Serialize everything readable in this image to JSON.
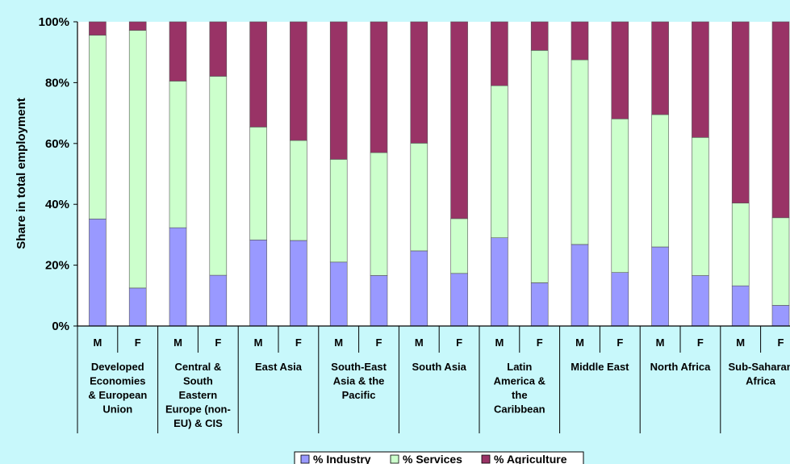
{
  "chart_data": {
    "type": "bar",
    "stacked": true,
    "percent": true,
    "ylabel": "Share in total employment",
    "ylim": [
      0,
      100
    ],
    "yticks": [
      "0%",
      "20%",
      "40%",
      "60%",
      "80%",
      "100%"
    ],
    "groups": [
      {
        "lines": [
          "Developed",
          "Economies",
          "& European",
          "Union"
        ]
      },
      {
        "lines": [
          "Central &",
          "South",
          "Eastern",
          "Europe (non-",
          "EU) & CIS"
        ]
      },
      {
        "lines": [
          "East Asia"
        ]
      },
      {
        "lines": [
          "South-East",
          "Asia & the",
          "Pacific"
        ]
      },
      {
        "lines": [
          "South Asia"
        ]
      },
      {
        "lines": [
          "Latin",
          "America  &",
          "the",
          "Caribbean"
        ]
      },
      {
        "lines": [
          "Middle East"
        ]
      },
      {
        "lines": [
          "North Africa"
        ]
      },
      {
        "lines": [
          "Sub-Saharan",
          "Africa"
        ]
      }
    ],
    "sexes": [
      "M",
      "F"
    ],
    "series": [
      {
        "name": "% Industry",
        "color": "#9999ff",
        "values": [
          35.2,
          12.5,
          32.3,
          16.7,
          28.3,
          28.1,
          21.0,
          16.6,
          24.7,
          17.3,
          29.0,
          14.2,
          26.8,
          17.6,
          26.0,
          16.6,
          13.2,
          6.8
        ]
      },
      {
        "name": "% Services",
        "color": "#ccffcc",
        "values": [
          60.4,
          84.7,
          48.2,
          65.4,
          37.1,
          32.9,
          33.8,
          40.4,
          35.4,
          18.0,
          50.0,
          76.4,
          60.7,
          50.5,
          43.5,
          45.4,
          27.2,
          28.8
        ]
      },
      {
        "name": "% Agriculture",
        "color": "#993366",
        "values": [
          4.4,
          2.8,
          19.5,
          17.9,
          34.6,
          39.0,
          45.2,
          43.0,
          39.9,
          64.7,
          21.0,
          9.4,
          12.5,
          31.9,
          30.5,
          38.0,
          59.6,
          64.4
        ]
      }
    ],
    "legend": "bottom",
    "grid": false
  }
}
